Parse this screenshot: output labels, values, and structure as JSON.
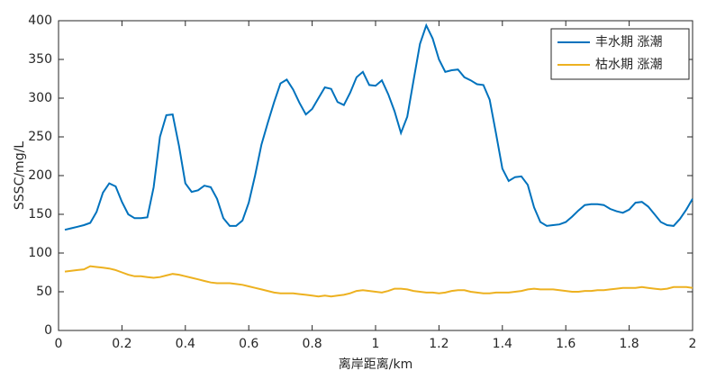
{
  "chart_data": {
    "type": "line",
    "xlabel": "离岸距离/km",
    "ylabel": "SSSC/mg/L",
    "x": [
      0.02,
      0.04,
      0.06,
      0.08,
      0.1,
      0.12,
      0.14,
      0.16,
      0.18,
      0.2,
      0.22,
      0.24,
      0.26,
      0.28,
      0.3,
      0.32,
      0.34,
      0.36,
      0.38,
      0.4,
      0.42,
      0.44,
      0.46,
      0.48,
      0.5,
      0.52,
      0.54,
      0.56,
      0.58,
      0.6,
      0.62,
      0.64,
      0.66,
      0.68,
      0.7,
      0.72,
      0.74,
      0.76,
      0.78,
      0.8,
      0.82,
      0.84,
      0.86,
      0.88,
      0.9,
      0.92,
      0.94,
      0.96,
      0.98,
      1.0,
      1.02,
      1.04,
      1.06,
      1.08,
      1.1,
      1.12,
      1.14,
      1.16,
      1.18,
      1.2,
      1.22,
      1.24,
      1.26,
      1.28,
      1.3,
      1.32,
      1.34,
      1.36,
      1.38,
      1.4,
      1.42,
      1.44,
      1.46,
      1.48,
      1.5,
      1.52,
      1.54,
      1.56,
      1.58,
      1.6,
      1.62,
      1.64,
      1.66,
      1.68,
      1.7,
      1.72,
      1.74,
      1.76,
      1.78,
      1.8,
      1.82,
      1.84,
      1.86,
      1.88,
      1.9,
      1.92,
      1.94,
      1.96,
      1.98,
      2.0
    ],
    "series": [
      {
        "name": "丰水期 涨潮",
        "color": "#0072bd",
        "values": [
          130,
          132,
          134,
          136,
          139,
          153,
          178,
          190,
          186,
          166,
          150,
          145,
          145,
          146,
          185,
          250,
          278,
          279,
          238,
          190,
          179,
          181,
          187,
          185,
          170,
          145,
          135,
          135,
          142,
          165,
          200,
          240,
          268,
          295,
          319,
          324,
          311,
          294,
          279,
          286,
          300,
          314,
          312,
          295,
          291,
          307,
          327,
          334,
          317,
          316,
          323,
          305,
          283,
          255,
          276,
          323,
          370,
          394,
          377,
          350,
          334,
          336,
          337,
          327,
          323,
          318,
          317,
          298,
          254,
          209,
          193,
          198,
          199,
          188,
          159,
          140,
          135,
          136,
          137,
          140,
          147,
          155,
          162,
          163,
          163,
          162,
          157,
          154,
          152,
          156,
          165,
          166,
          160,
          150,
          140,
          136,
          135,
          144,
          156,
          170
        ]
      },
      {
        "name": "枯水期 涨潮",
        "color": "#edb120",
        "values": [
          76,
          77,
          78,
          79,
          83,
          82,
          81,
          80,
          78,
          75,
          72,
          70,
          70,
          69,
          68,
          69,
          71,
          73,
          72,
          70,
          68,
          66,
          64,
          62,
          61,
          61,
          61,
          60,
          59,
          57,
          55,
          53,
          51,
          49,
          48,
          48,
          48,
          47,
          46,
          45,
          44,
          45,
          44,
          45,
          46,
          48,
          51,
          52,
          51,
          50,
          49,
          51,
          54,
          54,
          53,
          51,
          50,
          49,
          49,
          48,
          49,
          51,
          52,
          52,
          50,
          49,
          48,
          48,
          49,
          49,
          49,
          50,
          51,
          53,
          54,
          53,
          53,
          53,
          52,
          51,
          50,
          50,
          51,
          51,
          52,
          52,
          53,
          54,
          55,
          55,
          55,
          56,
          55,
          54,
          53,
          54,
          56,
          56,
          56,
          55
        ]
      }
    ],
    "xlim": [
      0,
      2
    ],
    "xticks": [
      0,
      0.2,
      0.4,
      0.6,
      0.8,
      1,
      1.2,
      1.4,
      1.6,
      1.8,
      2
    ],
    "ylim": [
      0,
      400
    ],
    "yticks": [
      0,
      50,
      100,
      150,
      200,
      250,
      300,
      350,
      400
    ],
    "legend": "upper right",
    "grid": false
  }
}
